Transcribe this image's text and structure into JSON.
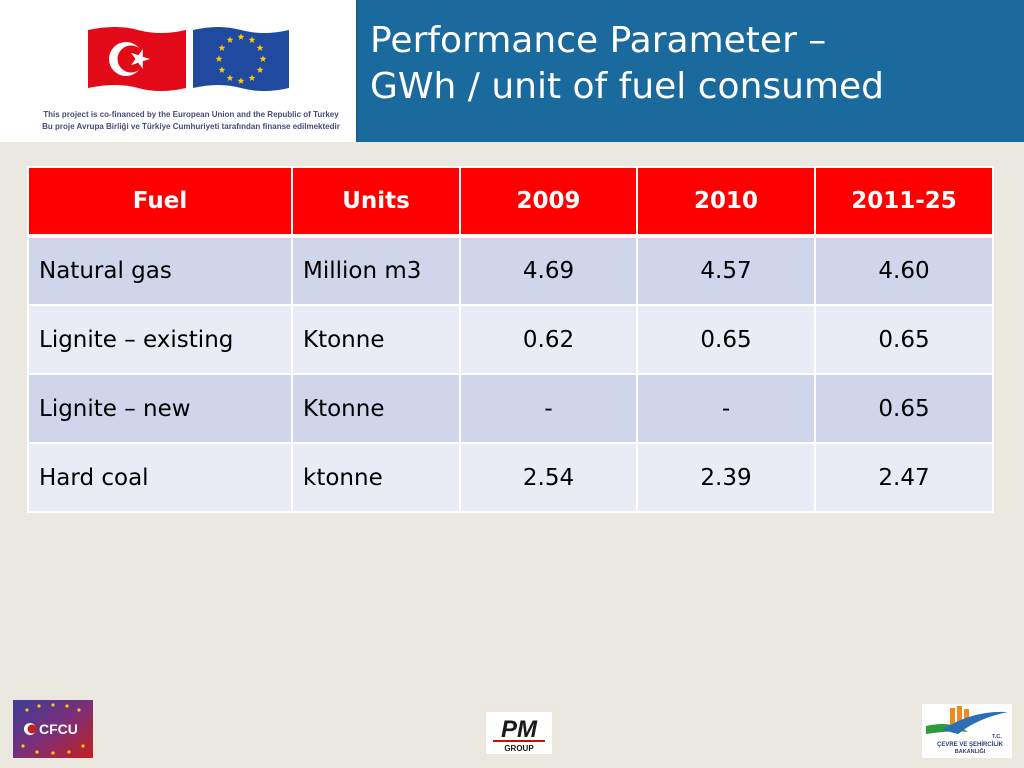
{
  "header": {
    "title_line1": "Performance Parameter –",
    "title_line2": "GWh / unit of fuel consumed",
    "cofinance_line1": "This project is co-financed by the European Union and the Republic of Turkey",
    "cofinance_line2": "Bu proje Avrupa Birliği ve Türkiye Cumhuriyeti tarafından finanse edilmektedir"
  },
  "table": {
    "columns": [
      "Fuel",
      "Units",
      "2009",
      "2010",
      "2011-25"
    ],
    "rows": [
      {
        "fuel": "Natural gas",
        "units": "Million m3",
        "y2009": "4.69",
        "y2010": "4.57",
        "y2011_25": "4.60"
      },
      {
        "fuel": "Lignite – existing",
        "units": "Ktonne",
        "y2009": "0.62",
        "y2010": "0.65",
        "y2011_25": "0.65"
      },
      {
        "fuel": "Lignite – new",
        "units": "Ktonne",
        "y2009": "-",
        "y2010": "-",
        "y2011_25": "0.65"
      },
      {
        "fuel": "Hard coal",
        "units": "ktonne",
        "y2009": "2.54",
        "y2010": "2.39",
        "y2011_25": "2.47"
      }
    ]
  },
  "footer": {
    "cfcu_label": "CFCU",
    "pm_label": "PM",
    "pm_sub": "GROUP",
    "ministry_tc": "T.C.",
    "ministry_name": "ÇEVRE VE ŞEHİRCİLİK",
    "ministry_sub": "BAKANLIĞI"
  },
  "colors": {
    "header_blue": "#1a6a9e",
    "table_header_red": "#ff0000",
    "row_dark": "#cfd5ea",
    "row_light": "#e9ebf5",
    "background": "#ebe8df"
  },
  "icons": [
    "turkey-flag-icon",
    "eu-flag-icon",
    "cfcu-logo-icon",
    "pm-group-logo-icon",
    "ministry-logo-icon"
  ]
}
